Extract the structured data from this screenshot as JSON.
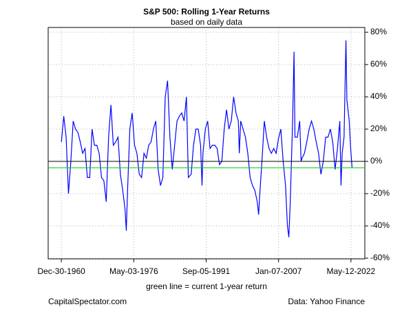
{
  "chart_data": {
    "type": "line",
    "title": "S&P 500: Rolling 1-Year Returns",
    "subtitle": "based on daily data",
    "x_label": "green line = current 1-year return",
    "annotations": [
      "CapitalSpectator.com",
      "Data: Yahoo Finance"
    ],
    "color": "#0000ff",
    "grid": true,
    "y_axis_side": "right",
    "x": [
      1961.0,
      1961.5,
      1962.0,
      1962.5,
      1963.0,
      1963.5,
      1964.0,
      1964.5,
      1965.0,
      1965.5,
      1966.0,
      1966.5,
      1967.0,
      1967.5,
      1968.0,
      1968.5,
      1969.0,
      1969.5,
      1970.0,
      1970.5,
      1971.0,
      1971.5,
      1972.0,
      1972.5,
      1973.0,
      1973.5,
      1974.0,
      1974.5,
      1974.75,
      1975.0,
      1975.5,
      1976.0,
      1976.5,
      1977.0,
      1977.5,
      1978.0,
      1978.5,
      1979.0,
      1979.5,
      1980.0,
      1980.5,
      1981.0,
      1981.5,
      1982.0,
      1982.5,
      1983.0,
      1983.5,
      1984.0,
      1984.5,
      1985.0,
      1985.5,
      1986.0,
      1986.5,
      1987.0,
      1987.5,
      1987.9,
      1988.5,
      1989.0,
      1989.5,
      1990.0,
      1990.5,
      1990.8,
      1991.0,
      1991.5,
      1992.0,
      1992.5,
      1993.0,
      1993.5,
      1994.0,
      1994.5,
      1995.0,
      1995.5,
      1996.0,
      1996.5,
      1997.0,
      1997.5,
      1998.0,
      1998.5,
      1998.7,
      1999.0,
      1999.5,
      2000.0,
      2000.5,
      2001.0,
      2001.5,
      2002.0,
      2002.5,
      2002.8,
      2003.0,
      2003.5,
      2004.0,
      2004.5,
      2005.0,
      2005.5,
      2006.0,
      2006.5,
      2007.0,
      2007.5,
      2008.0,
      2008.5,
      2008.9,
      2009.2,
      2009.5,
      2010.0,
      2010.3,
      2010.5,
      2011.0,
      2011.5,
      2011.8,
      2012.0,
      2012.5,
      2013.0,
      2013.5,
      2014.0,
      2014.5,
      2015.0,
      2015.5,
      2016.0,
      2016.5,
      2017.0,
      2017.5,
      2018.0,
      2018.5,
      2019.0,
      2019.5,
      2020.0,
      2020.25,
      2020.5,
      2020.9,
      2021.3,
      2021.5,
      2022.0,
      2022.3,
      2022.6
    ],
    "values": [
      12,
      28,
      15,
      -20,
      0,
      25,
      20,
      18,
      12,
      5,
      8,
      -10,
      -10,
      20,
      10,
      10,
      5,
      -10,
      -12,
      -25,
      15,
      35,
      10,
      12,
      15,
      -8,
      -18,
      -30,
      -43,
      -20,
      20,
      30,
      10,
      5,
      -8,
      -10,
      5,
      2,
      10,
      12,
      20,
      25,
      -5,
      -15,
      -10,
      40,
      50,
      15,
      -5,
      10,
      25,
      28,
      30,
      25,
      40,
      -10,
      -8,
      10,
      20,
      20,
      10,
      -15,
      5,
      20,
      25,
      8,
      10,
      10,
      8,
      -2,
      0,
      20,
      32,
      20,
      25,
      40,
      30,
      25,
      5,
      25,
      20,
      15,
      5,
      -10,
      -15,
      -18,
      -25,
      -33,
      -22,
      0,
      25,
      15,
      8,
      5,
      8,
      5,
      14,
      20,
      0,
      -15,
      -40,
      -47,
      -25,
      25,
      68,
      15,
      15,
      25,
      0,
      2,
      5,
      12,
      20,
      25,
      20,
      12,
      5,
      -8,
      0,
      15,
      15,
      20,
      12,
      -5,
      8,
      25,
      -15,
      5,
      15,
      75,
      38,
      25,
      8,
      -4
    ],
    "xlim": [
      1958.2,
      2025.3
    ],
    "xticks": [
      {
        "value": 1960.99,
        "label": "Dec-30-1960"
      },
      {
        "value": 1976.34,
        "label": "May-03-1976"
      },
      {
        "value": 1991.68,
        "label": "Sep-05-1991"
      },
      {
        "value": 2007.02,
        "label": "Jan-07-2007"
      },
      {
        "value": 2022.36,
        "label": "May-12-2022"
      }
    ],
    "ylim": [
      -60,
      80
    ],
    "yticks": [
      {
        "value": -60,
        "label": "-60%"
      },
      {
        "value": -40,
        "label": "-40%"
      },
      {
        "value": -20,
        "label": "-20%"
      },
      {
        "value": 0,
        "label": "0%"
      },
      {
        "value": 20,
        "label": "20%"
      },
      {
        "value": 40,
        "label": "40%"
      },
      {
        "value": 60,
        "label": "60%"
      },
      {
        "value": 80,
        "label": "80%"
      }
    ],
    "reference_lines": [
      {
        "value": 0,
        "color": "#000000"
      },
      {
        "value": -4,
        "color": "#00cc00"
      }
    ]
  }
}
